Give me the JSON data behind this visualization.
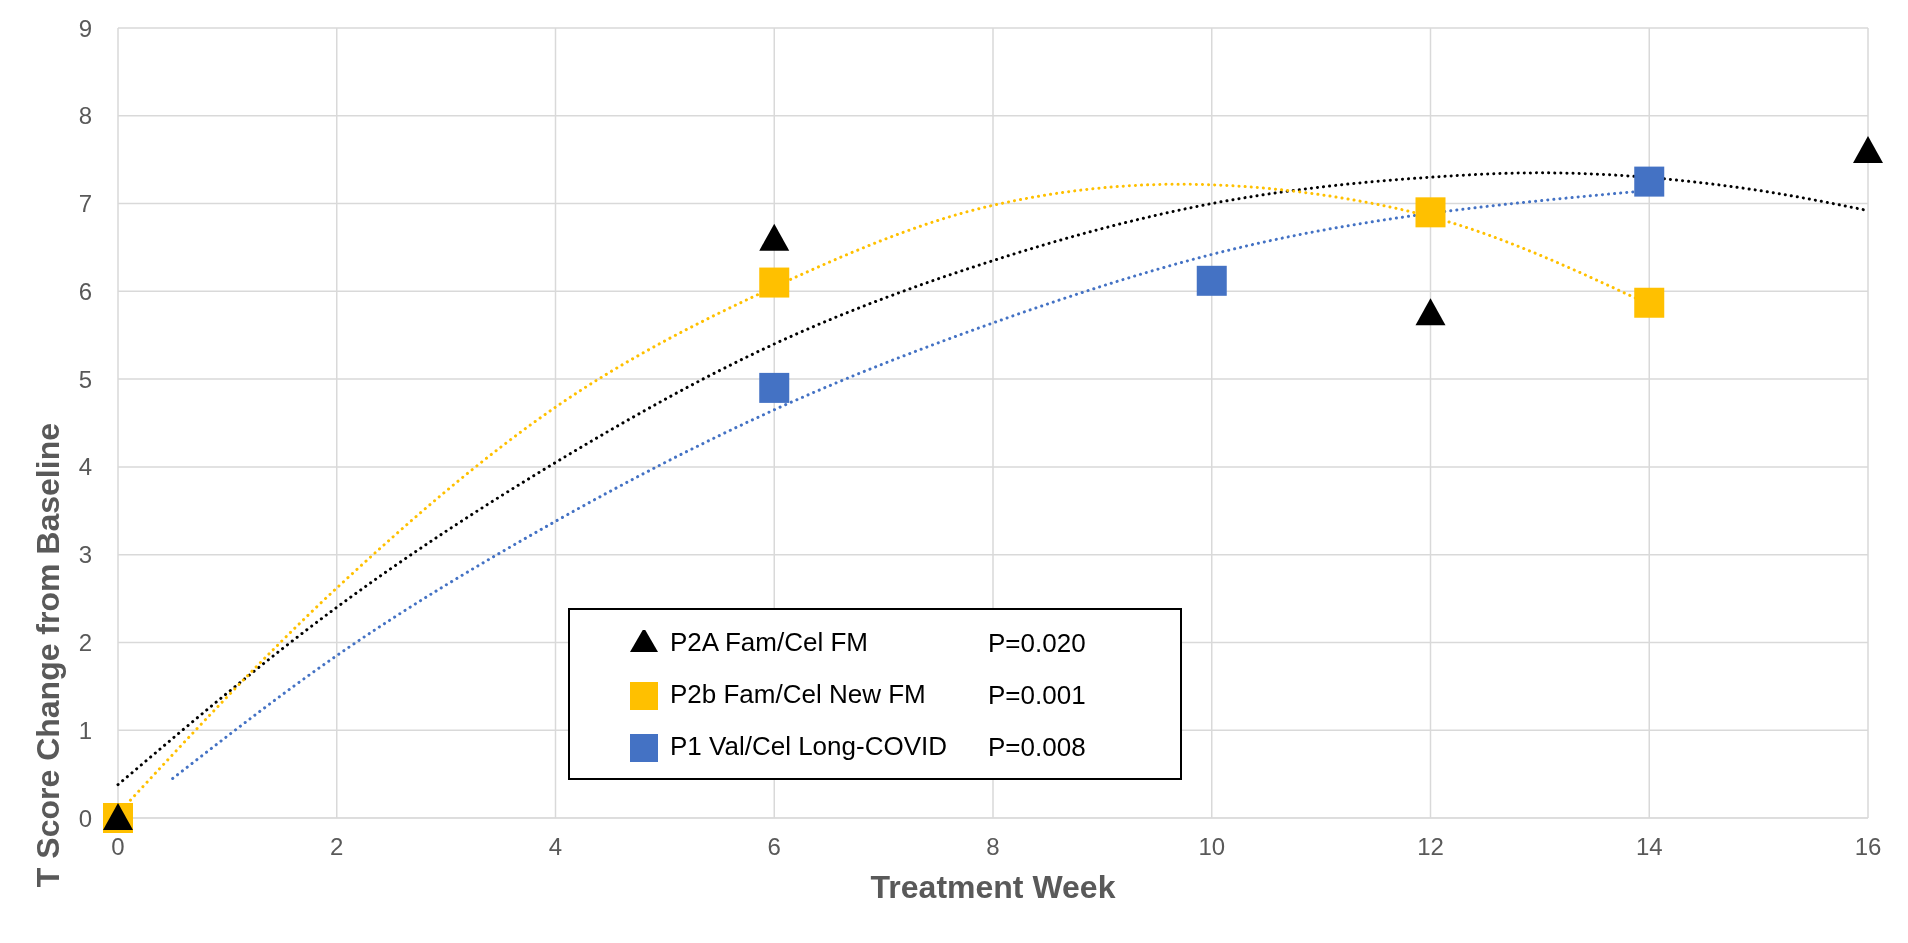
{
  "chart_data": {
    "type": "scatter",
    "xlabel": "Treatment Week",
    "ylabel": "T Score Change from Baseline",
    "xlim": [
      0,
      16
    ],
    "xticks": [
      0,
      2,
      4,
      6,
      8,
      10,
      12,
      14,
      16
    ],
    "ylim": [
      0,
      9
    ],
    "yticks": [
      0,
      1,
      2,
      3,
      4,
      5,
      6,
      7,
      8,
      9
    ],
    "grid": true,
    "legend": "bottom",
    "annotations": [
      "P=0.020",
      "P=0.001",
      "P=0.008"
    ],
    "series": [
      {
        "name": "P2A Fam/Cel FM",
        "color": "#000000",
        "marker": "triangle",
        "x": [
          0,
          6,
          12,
          16
        ],
        "values": [
          0,
          6.6,
          5.75,
          7.6
        ]
      },
      {
        "name": "P2b Fam/Cel New FM",
        "color": "#ffc000",
        "marker": "square",
        "x": [
          0,
          6,
          12,
          14
        ],
        "values": [
          0,
          6.1,
          6.9,
          5.87
        ]
      },
      {
        "name": "P1 Val/Cel Long-COVID",
        "color": "#4472c4",
        "marker": "square",
        "x": [
          6,
          10,
          14
        ],
        "values": [
          4.9,
          6.12,
          7.25
        ]
      },
      {
        "type": "line",
        "color": "#000000",
        "line_style": "dotted",
        "x": [
          0,
          2,
          4,
          6,
          8,
          10,
          12,
          13,
          15,
          16
        ],
        "values": [
          0.38,
          2.4,
          4.05,
          5.4,
          6.35,
          7.0,
          7.3,
          7.35,
          7.15,
          6.92
        ]
      },
      {
        "type": "line",
        "color": "#ffc000",
        "line_style": "dotted",
        "x": [
          0,
          2,
          4,
          6,
          8,
          9.7,
          11,
          12,
          14
        ],
        "values": [
          0.05,
          2.62,
          4.68,
          6.05,
          6.98,
          7.22,
          7.1,
          6.85,
          5.85
        ]
      },
      {
        "type": "line",
        "color": "#4472c4",
        "line_style": "dotted",
        "x": [
          0.5,
          2,
          4,
          6,
          8,
          10,
          14
        ],
        "values": [
          0.45,
          1.85,
          3.38,
          4.65,
          5.64,
          6.42,
          7.15
        ]
      }
    ]
  }
}
